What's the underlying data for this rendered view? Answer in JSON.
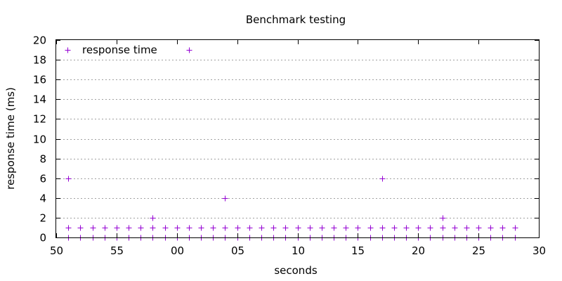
{
  "chart_data": {
    "type": "scatter",
    "title": "Benchmark testing",
    "xlabel": "seconds",
    "ylabel": "response time (ms)",
    "xlim": [
      50,
      90
    ],
    "ylim": [
      0,
      20
    ],
    "x_ticks": [
      {
        "value": 50,
        "label": "50"
      },
      {
        "value": 55,
        "label": "55"
      },
      {
        "value": 60,
        "label": "00"
      },
      {
        "value": 65,
        "label": "05"
      },
      {
        "value": 70,
        "label": "10"
      },
      {
        "value": 75,
        "label": "15"
      },
      {
        "value": 80,
        "label": "20"
      },
      {
        "value": 85,
        "label": "25"
      },
      {
        "value": 90,
        "label": "30"
      }
    ],
    "y_ticks": [
      0,
      2,
      4,
      6,
      8,
      10,
      12,
      14,
      16,
      18,
      20
    ],
    "grid": "horizontal",
    "legend_position": "top-left",
    "marker": "+",
    "color": "#9400d3",
    "series": [
      {
        "name": "response time",
        "x": [
          51,
          51,
          51,
          52,
          52,
          53,
          53,
          54,
          54,
          55,
          55,
          56,
          56,
          57,
          57,
          58,
          58,
          58,
          59,
          59,
          60,
          60,
          61,
          61,
          61,
          62,
          62,
          63,
          63,
          64,
          64,
          64,
          65,
          65,
          66,
          66,
          67,
          67,
          68,
          68,
          69,
          69,
          70,
          70,
          71,
          71,
          72,
          72,
          73,
          73,
          74,
          74,
          75,
          75,
          76,
          76,
          77,
          77,
          77,
          78,
          78,
          79,
          79,
          80,
          80,
          81,
          81,
          82,
          82,
          82,
          83,
          83,
          84,
          84,
          85,
          85,
          86,
          86,
          87,
          87,
          88,
          88
        ],
        "y": [
          0,
          1,
          6,
          0,
          1,
          0,
          1,
          0,
          1,
          0,
          1,
          0,
          1,
          0,
          1,
          0,
          1,
          2,
          0,
          1,
          0,
          1,
          0,
          1,
          19,
          0,
          1,
          0,
          1,
          0,
          1,
          4,
          0,
          1,
          0,
          1,
          0,
          1,
          0,
          1,
          0,
          1,
          0,
          1,
          0,
          1,
          0,
          1,
          0,
          1,
          0,
          1,
          0,
          1,
          0,
          1,
          0,
          1,
          6,
          0,
          1,
          0,
          1,
          0,
          1,
          0,
          1,
          0,
          1,
          2,
          0,
          1,
          0,
          1,
          0,
          1,
          0,
          1,
          0,
          1,
          0,
          1
        ]
      }
    ]
  }
}
